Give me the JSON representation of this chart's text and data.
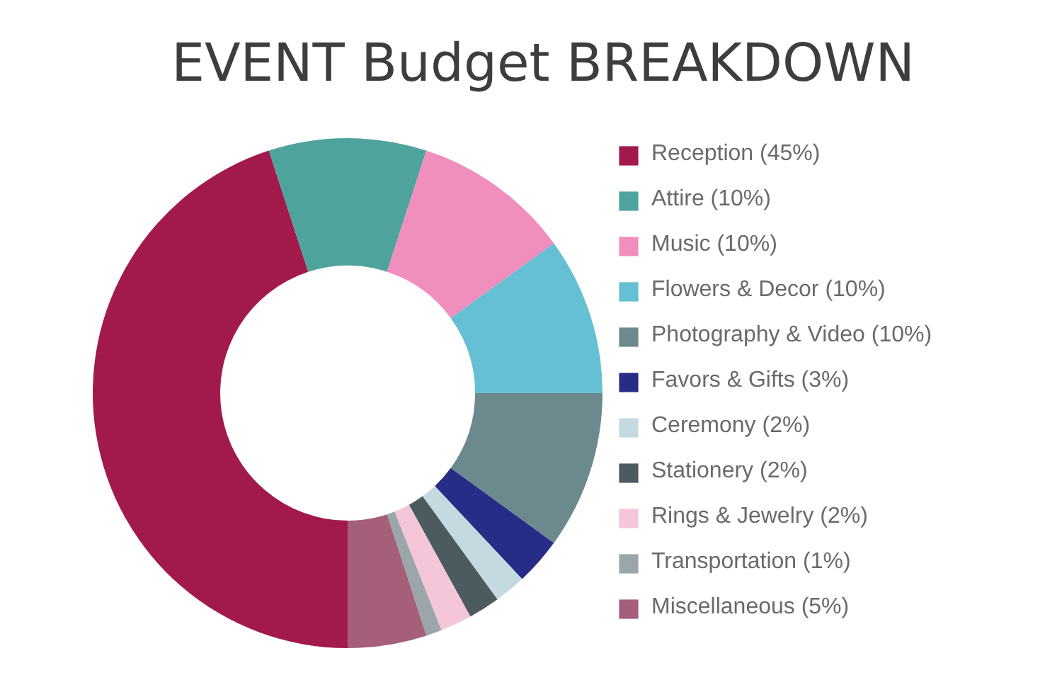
{
  "chart_data": {
    "type": "donut",
    "title": "EVENT Budget BREAKDOWN",
    "categories": [
      "Reception (45%)",
      "Attire (10%)",
      "Music (10%)",
      "Flowers & Decor (10%)",
      "Photography & Video (10%)",
      "Favors & Gifts (3%)",
      "Ceremony (2%)",
      "Stationery (2%)",
      "Rings & Jewelry (2%)",
      "Transportation (1%)",
      "Miscellaneous (5%)"
    ],
    "values": [
      45,
      10,
      10,
      10,
      10,
      3,
      2,
      2,
      2,
      1,
      5
    ],
    "colors": [
      "#a21a4c",
      "#4fa39d",
      "#f08fbd",
      "#66c0d3",
      "#6c8a8e",
      "#272c86",
      "#c4dae0",
      "#4c5b5f",
      "#f5c5da",
      "#9aa6aa",
      "#a55f7a"
    ],
    "legend": "right"
  }
}
